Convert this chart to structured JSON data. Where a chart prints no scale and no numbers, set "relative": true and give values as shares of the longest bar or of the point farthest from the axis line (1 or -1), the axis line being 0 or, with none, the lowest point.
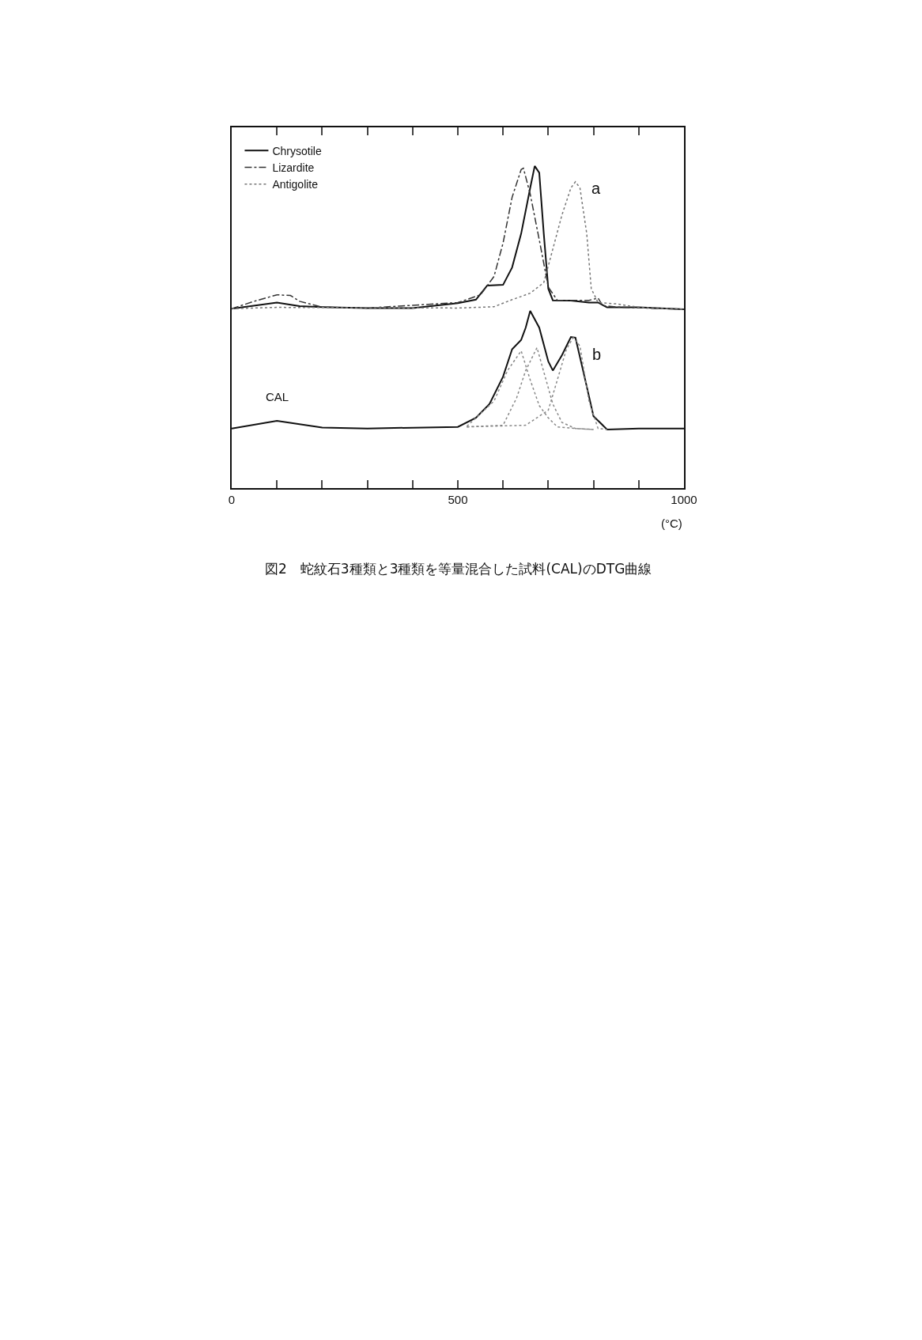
{
  "chart_data": {
    "type": "line",
    "relative": true,
    "xlabel": "(°C)",
    "xlim": [
      0,
      1000
    ],
    "xticks": [
      0,
      {
        "value": 100,
        "label": null
      },
      {
        "value": 200,
        "label": null
      },
      {
        "value": 300,
        "label": null
      },
      {
        "value": 400,
        "label": null
      },
      500,
      {
        "value": 600,
        "label": null
      },
      {
        "value": 700,
        "label": null
      },
      {
        "value": 800,
        "label": null
      },
      {
        "value": 900,
        "label": null
      },
      1000
    ],
    "legend": "top left",
    "marker": "none",
    "annotations": [
      "a",
      "b",
      "図2　蛇紋石3種類と3種類を等量混合した試料(CAL)のDTG曲線"
    ],
    "series": [
      {
        "name": "Chrysotile",
        "color": "#111111",
        "line_style": "solid",
        "x": [
          0,
          100,
          150,
          200,
          300,
          400,
          500,
          540,
          565,
          600,
          620,
          640,
          660,
          670,
          680,
          690,
          700,
          710,
          750,
          790,
          810,
          830,
          900,
          1000
        ],
        "values": [
          0.557,
          0.576,
          0.565,
          0.562,
          0.559,
          0.559,
          0.574,
          0.585,
          0.629,
          0.631,
          0.685,
          0.79,
          0.932,
          1.0,
          0.979,
          0.79,
          0.619,
          0.583,
          0.582,
          0.576,
          0.576,
          0.561,
          0.561,
          0.555
        ]
      },
      {
        "name": "Lizardite",
        "color": "#333333",
        "line_style": "dashed",
        "x": [
          0,
          50,
          100,
          130,
          150,
          200,
          300,
          500,
          550,
          580,
          600,
          620,
          640,
          645,
          660,
          680,
          700,
          720,
          790,
          810,
          820,
          850,
          1000
        ],
        "values": [
          0.557,
          0.58,
          0.6,
          0.598,
          0.58,
          0.562,
          0.559,
          0.576,
          0.6,
          0.657,
          0.761,
          0.903,
          0.989,
          0.993,
          0.913,
          0.771,
          0.624,
          0.583,
          0.583,
          0.59,
          0.567,
          0.562,
          0.555
        ]
      },
      {
        "name": "Antigolite",
        "color": "#777777",
        "line_style": "dotted",
        "x": [
          0,
          100,
          500,
          580,
          620,
          660,
          690,
          710,
          730,
          750,
          760,
          770,
          785,
          795,
          810,
          850,
          900,
          1000
        ],
        "values": [
          0.557,
          0.561,
          0.559,
          0.563,
          0.585,
          0.605,
          0.638,
          0.742,
          0.847,
          0.932,
          0.951,
          0.932,
          0.79,
          0.619,
          0.576,
          0.572,
          0.561,
          0.555
        ]
      },
      {
        "name": "CAL",
        "color": "#111111",
        "line_style": "solid",
        "x": [
          0,
          100,
          200,
          300,
          500,
          540,
          570,
          600,
          620,
          640,
          650,
          660,
          680,
          700,
          710,
          730,
          750,
          760,
          780,
          800,
          830,
          900,
          1000
        ],
        "values": [
          0.185,
          0.209,
          0.188,
          0.185,
          0.19,
          0.218,
          0.261,
          0.346,
          0.431,
          0.46,
          0.498,
          0.55,
          0.498,
          0.393,
          0.365,
          0.412,
          0.469,
          0.467,
          0.346,
          0.223,
          0.182,
          0.185,
          0.185
        ]
      },
      {
        "color": "#888888",
        "line_style": "dotted",
        "x": [
          520,
          580,
          610,
          640,
          660,
          680,
          700,
          720,
          760,
          800
        ],
        "values": [
          0.192,
          0.27,
          0.365,
          0.426,
          0.336,
          0.256,
          0.218,
          0.19,
          0.185,
          0.182
        ]
      },
      {
        "color": "#888888",
        "line_style": "dotted",
        "x": [
          520,
          600,
          630,
          650,
          675,
          690,
          710,
          730,
          760,
          800
        ],
        "values": [
          0.19,
          0.195,
          0.28,
          0.365,
          0.436,
          0.361,
          0.261,
          0.204,
          0.185,
          0.182
        ]
      },
      {
        "color": "#888888",
        "line_style": "dotted",
        "x": [
          520,
          650,
          700,
          720,
          740,
          755,
          770,
          790,
          810,
          830
        ],
        "values": [
          0.19,
          0.195,
          0.242,
          0.336,
          0.431,
          0.467,
          0.441,
          0.27,
          0.185,
          0.182
        ]
      }
    ]
  }
}
